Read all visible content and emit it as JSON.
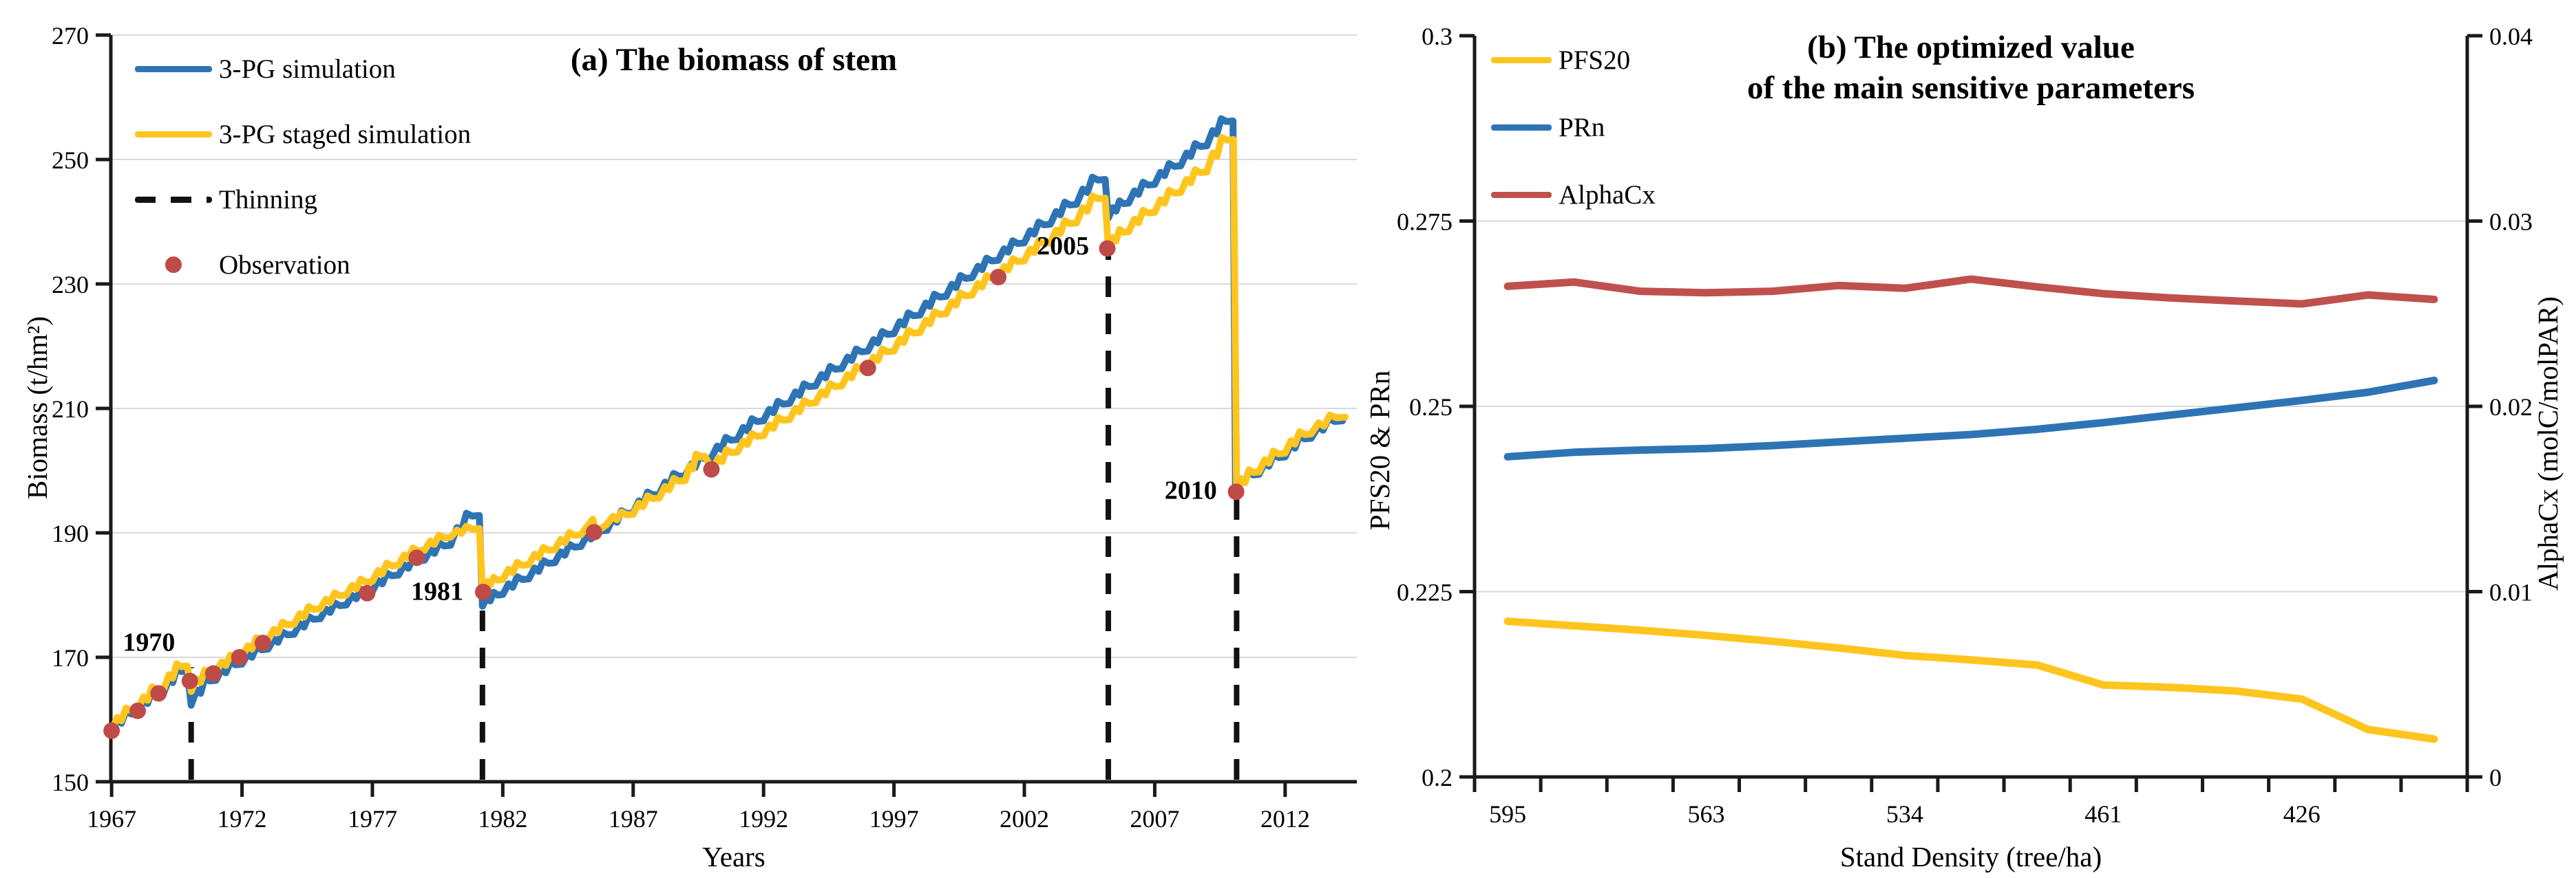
{
  "panel_a": {
    "title": "(a) The biomass of stem",
    "x_label": "Years",
    "y_label": "Biomass (t/hm²)",
    "legend": [
      {
        "label": "3-PG simulation",
        "type": "line",
        "color": "#2E74B5"
      },
      {
        "label": "3-PG staged simulation",
        "type": "line",
        "color": "#FFC51F"
      },
      {
        "label": "Thinning",
        "type": "dashed",
        "color": "#121212"
      },
      {
        "label": "Observation",
        "type": "dot",
        "color": "#BE4B48"
      }
    ]
  },
  "panel_b": {
    "title_line1": "(b) The optimized value",
    "title_line2": "of the main sensitive parameters",
    "x_label": "Stand Density (tree/ha)",
    "y_label_left": "PFS20 & PRn",
    "y_label_right": "AlphaCx (molC/molPAR)",
    "legend": [
      {
        "label": "PFS20",
        "type": "line",
        "color": "#FFC51F"
      },
      {
        "label": "PRn",
        "type": "line",
        "color": "#2E74B5"
      },
      {
        "label": "AlphaCx",
        "type": "line",
        "color": "#C0504D"
      }
    ]
  },
  "chart_data": [
    {
      "id": "biomass-of-stem",
      "type": "line",
      "title": "(a) The biomass of stem",
      "xlabel": "Years",
      "ylabel": "Biomass (t/hm²)",
      "xlim": [
        1966.97,
        2014.75
      ],
      "ylim": [
        150,
        270
      ],
      "x_ticks": [
        1967,
        1972,
        1977,
        1982,
        1987,
        1992,
        1997,
        2002,
        2007,
        2012
      ],
      "y_ticks": [
        150,
        170,
        190,
        210,
        230,
        250,
        270
      ],
      "grid": "horizontal",
      "legend_position": "top-left-inside",
      "wiggle_pattern": [
        [
          0.22,
          0.5,
          0.45
        ],
        [
          0.38,
          0.5,
          -0.1
        ],
        [
          0.55,
          1.0,
          0.35
        ],
        [
          0.75,
          1.0,
          -0.1
        ]
      ],
      "series": [
        {
          "name": "3-PG simulation",
          "color": "#2E74B5",
          "width": 10,
          "anchors": [
            [
              1967,
              158.0
            ],
            [
              1968,
              161.0
            ],
            [
              1969,
              164.3
            ],
            [
              1969.9,
              167.8
            ],
            [
              1970.05,
              162.3
            ],
            [
              1971,
              166.3
            ],
            [
              1972,
              168.9
            ],
            [
              1973,
              171.3
            ],
            [
              1974,
              173.7
            ],
            [
              1975,
              176.2
            ],
            [
              1976,
              178.4
            ],
            [
              1977,
              180.6
            ],
            [
              1978,
              183.2
            ],
            [
              1979,
              185.6
            ],
            [
              1980,
              188.0
            ],
            [
              1981.1,
              192.8
            ],
            [
              1981.22,
              178.2
            ],
            [
              1982,
              180.1
            ],
            [
              1983,
              182.6
            ],
            [
              1984,
              185.2
            ],
            [
              1985,
              187.8
            ],
            [
              1986,
              190.4
            ],
            [
              1987,
              193.2
            ],
            [
              1988,
              196.2
            ],
            [
              1989,
              199.2
            ],
            [
              1990,
              202.0
            ],
            [
              1991,
              205.0
            ],
            [
              1992,
              208.0
            ],
            [
              1993,
              210.8
            ],
            [
              1994,
              213.6
            ],
            [
              1995,
              216.4
            ],
            [
              1996,
              219.2
            ],
            [
              1997,
              222.0
            ],
            [
              1998,
              225.0
            ],
            [
              1999,
              228.0
            ],
            [
              2000,
              231.0
            ],
            [
              2001,
              233.8
            ],
            [
              2002,
              236.6
            ],
            [
              2003,
              239.6
            ],
            [
              2004,
              242.8
            ],
            [
              2005.1,
              246.8
            ],
            [
              2005.22,
              240.6
            ],
            [
              2006,
              243.0
            ],
            [
              2007,
              246.0
            ],
            [
              2008,
              249.0
            ],
            [
              2009,
              252.2
            ],
            [
              2010.0,
              256.2
            ],
            [
              2010.1,
              197.0
            ],
            [
              2011,
              199.4
            ],
            [
              2012,
              202.2
            ],
            [
              2013,
              205.2
            ],
            [
              2014.2,
              208.0
            ]
          ]
        },
        {
          "name": "3-PG staged simulation",
          "color": "#FFC51F",
          "width": 10,
          "anchors": [
            [
              1967,
              158.3
            ],
            [
              1968,
              161.5
            ],
            [
              1969,
              164.9
            ],
            [
              1969.9,
              168.6
            ],
            [
              1970.05,
              164.5
            ],
            [
              1971,
              167.6
            ],
            [
              1972,
              170.0
            ],
            [
              1973,
              172.8
            ],
            [
              1974,
              175.3
            ],
            [
              1975,
              177.8
            ],
            [
              1976,
              180.0
            ],
            [
              1977,
              182.2
            ],
            [
              1978,
              184.8
            ],
            [
              1979,
              187.2
            ],
            [
              1980,
              189.3
            ],
            [
              1981.1,
              190.7
            ],
            [
              1981.22,
              180.9
            ],
            [
              1982,
              182.5
            ],
            [
              1983,
              184.9
            ],
            [
              1984,
              187.3
            ],
            [
              1985,
              189.7
            ],
            [
              1985.45,
              192.2
            ],
            [
              1985.58,
              190.1
            ],
            [
              1986,
              191.4
            ],
            [
              1987,
              193.0
            ],
            [
              1988,
              195.6
            ],
            [
              1989,
              198.4
            ],
            [
              1989.75,
              202.3
            ],
            [
              1990.05,
              200.1
            ],
            [
              1991,
              203.0
            ],
            [
              1992,
              205.6
            ],
            [
              1993,
              208.2
            ],
            [
              1994,
              210.9
            ],
            [
              1995,
              213.6
            ],
            [
              1996,
              216.4
            ],
            [
              1997,
              219.2
            ],
            [
              1998,
              222.2
            ],
            [
              1999,
              225.2
            ],
            [
              2000,
              228.2
            ],
            [
              2001,
              231.0
            ],
            [
              2002,
              233.7
            ],
            [
              2003,
              236.6
            ],
            [
              2004,
              239.8
            ],
            [
              2005.1,
              243.8
            ],
            [
              2005.22,
              235.6
            ],
            [
              2006,
              238.4
            ],
            [
              2007,
              241.5
            ],
            [
              2008,
              244.7
            ],
            [
              2009,
              248.0
            ],
            [
              2010.02,
              253.2
            ],
            [
              2010.14,
              196.5
            ],
            [
              2011,
              199.8
            ],
            [
              2012,
              202.8
            ],
            [
              2013,
              205.9
            ],
            [
              2014.3,
              208.6
            ]
          ]
        }
      ],
      "thinning_events": [
        {
          "x": 1970.05,
          "y_top": 168.4,
          "label": "1970",
          "label_anchor": [
            1969.7,
            172.6
          ]
        },
        {
          "x": 1981.22,
          "y_top": 180.0,
          "label": "1981",
          "label_anchor": [
            1980.75,
            180.8
          ]
        },
        {
          "x": 2005.22,
          "y_top": 235.0,
          "label": "2005",
          "label_anchor": [
            2004.75,
            236.3
          ]
        },
        {
          "x": 2010.14,
          "y_top": 196.0,
          "label": "2010",
          "label_anchor": [
            2009.65,
            197.0
          ]
        }
      ],
      "observations": {
        "name": "Observation",
        "color": "#BE4B48",
        "radius": 12,
        "points": [
          [
            1967.0,
            158.2
          ],
          [
            1968.0,
            161.4
          ],
          [
            1968.8,
            164.2
          ],
          [
            1970.0,
            166.2
          ],
          [
            1970.9,
            167.4
          ],
          [
            1971.9,
            170.0
          ],
          [
            1972.8,
            172.3
          ],
          [
            1976.8,
            180.3
          ],
          [
            1978.7,
            186.0
          ],
          [
            1981.25,
            180.5
          ],
          [
            1985.5,
            190.1
          ],
          [
            1990.0,
            200.2
          ],
          [
            1996.0,
            216.5
          ],
          [
            2001.0,
            231.1
          ],
          [
            2005.18,
            235.7
          ],
          [
            2010.12,
            196.6
          ]
        ]
      }
    },
    {
      "id": "optimized-parameters",
      "type": "line",
      "title": "(b) The optimized value of the main sensitive parameters",
      "xlabel": "Stand Density (tree/ha)",
      "ylabel_left": "PFS20 & PRn",
      "ylabel_right": "AlphaCx (molC/molPAR)",
      "x_categories": 15,
      "x_tick_labels": [
        {
          "category": 0,
          "label": "595"
        },
        {
          "category": 3,
          "label": "563"
        },
        {
          "category": 6,
          "label": "534"
        },
        {
          "category": 9,
          "label": "461"
        },
        {
          "category": 12,
          "label": "426"
        }
      ],
      "ylim_left": [
        0.2,
        0.3
      ],
      "y_ticks_left": [
        "0.2",
        "0.225",
        "0.25",
        "0.275",
        "0.3"
      ],
      "ylim_right": [
        0,
        0.04
      ],
      "y_ticks_right": [
        "0",
        "0.01",
        "0.02",
        "0.03",
        "0.04"
      ],
      "gridlines_left": [
        0.225,
        0.25,
        0.275
      ],
      "legend_position": "top-left-inside",
      "series": [
        {
          "name": "PFS20",
          "axis": "left",
          "color": "#FFC51F",
          "width": 11,
          "values": [
            0.221,
            0.2204,
            0.2198,
            0.2191,
            0.2183,
            0.2174,
            0.2164,
            0.2158,
            0.2151,
            0.2124,
            0.2121,
            0.2116,
            0.2105,
            0.2064,
            0.2051
          ]
        },
        {
          "name": "PRn",
          "axis": "left",
          "color": "#2E74B5",
          "width": 11,
          "values": [
            0.2432,
            0.2438,
            0.2441,
            0.2443,
            0.2447,
            0.2452,
            0.2457,
            0.2462,
            0.2469,
            0.2478,
            0.2488,
            0.2498,
            0.2508,
            0.2519,
            0.2535
          ]
        },
        {
          "name": "AlphaCx",
          "axis": "right",
          "color": "#C0504D",
          "width": 11,
          "values": [
            0.02648,
            0.02671,
            0.02621,
            0.02613,
            0.02621,
            0.02652,
            0.02637,
            0.02687,
            0.02645,
            0.02608,
            0.02585,
            0.02569,
            0.02553,
            0.02601,
            0.02577
          ]
        }
      ]
    }
  ]
}
